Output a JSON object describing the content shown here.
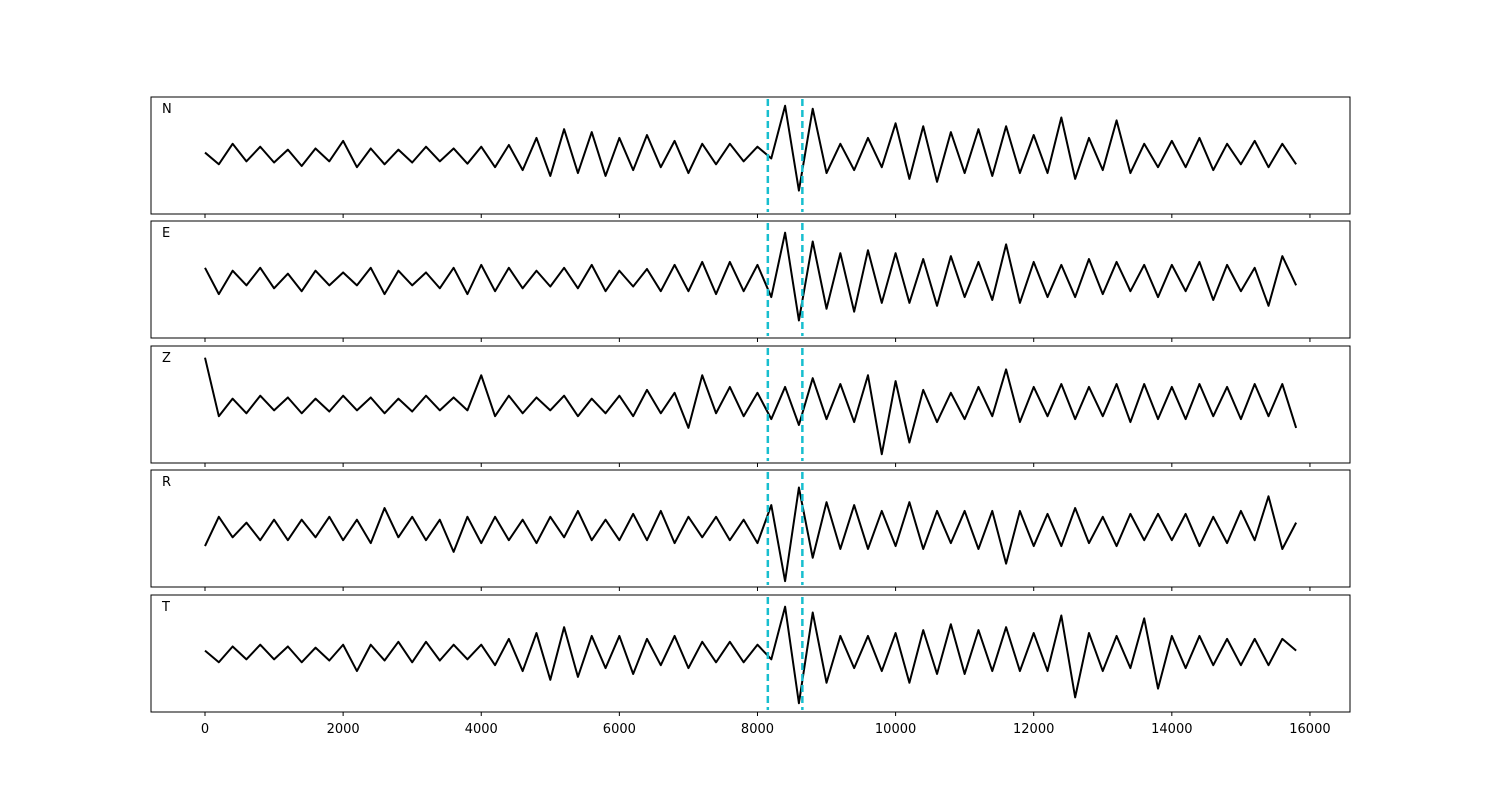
{
  "chart_data": [
    {
      "type": "line",
      "label": "N",
      "color": "#000000",
      "xlim": [
        -782,
        16580
      ],
      "ylim": [
        -1,
        1
      ],
      "vlines": [
        8150,
        8650
      ],
      "vline_color": "#17becf",
      "x": [
        0,
        200,
        400,
        600,
        800,
        1000,
        1200,
        1400,
        1600,
        1800,
        2000,
        2200,
        2400,
        2600,
        2800,
        3000,
        3200,
        3400,
        3600,
        3800,
        4000,
        4200,
        4400,
        4600,
        4800,
        5000,
        5200,
        5400,
        5600,
        5800,
        6000,
        6200,
        6400,
        6600,
        6800,
        7000,
        7200,
        7400,
        7600,
        7800,
        8000,
        8200,
        8400,
        8600,
        8800,
        9000,
        9200,
        9400,
        9600,
        9800,
        10000,
        10200,
        10400,
        10600,
        10800,
        11000,
        11200,
        11400,
        11600,
        11800,
        12000,
        12200,
        12400,
        12600,
        12800,
        13000,
        13200,
        13400,
        13600,
        13800,
        14000,
        14200,
        14400,
        14600,
        14800,
        15000,
        15200,
        15400,
        15600,
        15800
      ],
      "values": [
        0.05,
        -0.15,
        0.2,
        -0.1,
        0.15,
        -0.12,
        0.1,
        -0.18,
        0.12,
        -0.1,
        0.25,
        -0.2,
        0.12,
        -0.15,
        0.1,
        -0.12,
        0.15,
        -0.1,
        0.12,
        -0.14,
        0.15,
        -0.2,
        0.18,
        -0.25,
        0.3,
        -0.35,
        0.45,
        -0.3,
        0.4,
        -0.35,
        0.3,
        -0.25,
        0.35,
        -0.2,
        0.25,
        -0.3,
        0.2,
        -0.15,
        0.2,
        -0.1,
        0.15,
        -0.05,
        0.85,
        -0.6,
        0.8,
        -0.3,
        0.2,
        -0.25,
        0.3,
        -0.2,
        0.55,
        -0.4,
        0.5,
        -0.45,
        0.4,
        -0.3,
        0.45,
        -0.35,
        0.5,
        -0.3,
        0.35,
        -0.3,
        0.65,
        -0.4,
        0.3,
        -0.25,
        0.6,
        -0.3,
        0.2,
        -0.2,
        0.25,
        -0.2,
        0.3,
        -0.25,
        0.2,
        -0.15,
        0.25,
        -0.2,
        0.2,
        -0.15
      ]
    },
    {
      "type": "line",
      "label": "E",
      "color": "#000000",
      "xlim": [
        -782,
        16580
      ],
      "ylim": [
        -1,
        1
      ],
      "vlines": [
        8150,
        8650
      ],
      "vline_color": "#17becf",
      "x": [
        0,
        200,
        400,
        600,
        800,
        1000,
        1200,
        1400,
        1600,
        1800,
        2000,
        2200,
        2400,
        2600,
        2800,
        3000,
        3200,
        3400,
        3600,
        3800,
        4000,
        4200,
        4400,
        4600,
        4800,
        5000,
        5200,
        5400,
        5600,
        5800,
        6000,
        6200,
        6400,
        6600,
        6800,
        7000,
        7200,
        7400,
        7600,
        7800,
        8000,
        8200,
        8400,
        8600,
        8800,
        9000,
        9200,
        9400,
        9600,
        9800,
        10000,
        10200,
        10400,
        10600,
        10800,
        11000,
        11200,
        11400,
        11600,
        11800,
        12000,
        12200,
        12400,
        12600,
        12800,
        13000,
        13200,
        13400,
        13600,
        13800,
        14000,
        14200,
        14400,
        14600,
        14800,
        15000,
        15200,
        15400,
        15600,
        15800
      ],
      "values": [
        0.2,
        -0.25,
        0.15,
        -0.1,
        0.2,
        -0.15,
        0.1,
        -0.2,
        0.15,
        -0.1,
        0.12,
        -0.1,
        0.2,
        -0.25,
        0.15,
        -0.1,
        0.12,
        -0.15,
        0.2,
        -0.25,
        0.25,
        -0.2,
        0.2,
        -0.15,
        0.15,
        -0.12,
        0.2,
        -0.15,
        0.25,
        -0.2,
        0.15,
        -0.12,
        0.18,
        -0.2,
        0.25,
        -0.2,
        0.3,
        -0.25,
        0.3,
        -0.2,
        0.25,
        -0.3,
        0.8,
        -0.7,
        0.65,
        -0.5,
        0.45,
        -0.55,
        0.5,
        -0.4,
        0.45,
        -0.4,
        0.35,
        -0.45,
        0.4,
        -0.3,
        0.3,
        -0.35,
        0.6,
        -0.4,
        0.3,
        -0.3,
        0.25,
        -0.3,
        0.35,
        -0.25,
        0.3,
        -0.2,
        0.25,
        -0.3,
        0.25,
        -0.2,
        0.3,
        -0.35,
        0.25,
        -0.2,
        0.2,
        -0.45,
        0.4,
        -0.1
      ]
    },
    {
      "type": "line",
      "label": "Z",
      "color": "#000000",
      "xlim": [
        -782,
        16580
      ],
      "ylim": [
        -1,
        1
      ],
      "vlines": [
        8150,
        8650
      ],
      "vline_color": "#17becf",
      "x": [
        0,
        200,
        400,
        600,
        800,
        1000,
        1200,
        1400,
        1600,
        1800,
        2000,
        2200,
        2400,
        2600,
        2800,
        3000,
        3200,
        3400,
        3600,
        3800,
        4000,
        4200,
        4400,
        4600,
        4800,
        5000,
        5200,
        5400,
        5600,
        5800,
        6000,
        6200,
        6400,
        6600,
        6800,
        7000,
        7200,
        7400,
        7600,
        7800,
        8000,
        8200,
        8400,
        8600,
        8800,
        9000,
        9200,
        9400,
        9600,
        9800,
        10000,
        10200,
        10400,
        10600,
        10800,
        11000,
        11200,
        11400,
        11600,
        11800,
        12000,
        12200,
        12400,
        12600,
        12800,
        13000,
        13200,
        13400,
        13600,
        13800,
        14000,
        14200,
        14400,
        14600,
        14800,
        15000,
        15200,
        15400,
        15600,
        15800
      ],
      "values": [
        0.8,
        -0.2,
        0.1,
        -0.15,
        0.15,
        -0.1,
        0.12,
        -0.15,
        0.1,
        -0.12,
        0.15,
        -0.1,
        0.12,
        -0.15,
        0.1,
        -0.12,
        0.15,
        -0.1,
        0.12,
        -0.1,
        0.5,
        -0.2,
        0.15,
        -0.15,
        0.12,
        -0.1,
        0.15,
        -0.2,
        0.1,
        -0.15,
        0.15,
        -0.2,
        0.25,
        -0.15,
        0.2,
        -0.4,
        0.5,
        -0.15,
        0.3,
        -0.2,
        0.2,
        -0.25,
        0.3,
        -0.35,
        0.45,
        -0.25,
        0.35,
        -0.3,
        0.5,
        -0.85,
        0.4,
        -0.65,
        0.25,
        -0.3,
        0.2,
        -0.25,
        0.3,
        -0.2,
        0.6,
        -0.3,
        0.3,
        -0.2,
        0.35,
        -0.25,
        0.3,
        -0.2,
        0.35,
        -0.3,
        0.35,
        -0.25,
        0.3,
        -0.25,
        0.35,
        -0.2,
        0.3,
        -0.25,
        0.35,
        -0.2,
        0.35,
        -0.4
      ]
    },
    {
      "type": "line",
      "label": "R",
      "color": "#000000",
      "xlim": [
        -782,
        16580
      ],
      "ylim": [
        -1,
        1
      ],
      "vlines": [
        8150,
        8650
      ],
      "vline_color": "#17becf",
      "x": [
        0,
        200,
        400,
        600,
        800,
        1000,
        1200,
        1400,
        1600,
        1800,
        2000,
        2200,
        2400,
        2600,
        2800,
        3000,
        3200,
        3400,
        3600,
        3800,
        4000,
        4200,
        4400,
        4600,
        4800,
        5000,
        5200,
        5400,
        5600,
        5800,
        6000,
        6200,
        6400,
        6600,
        6800,
        7000,
        7200,
        7400,
        7600,
        7800,
        8000,
        8200,
        8400,
        8600,
        8800,
        9000,
        9200,
        9400,
        9600,
        9800,
        10000,
        10200,
        10400,
        10600,
        10800,
        11000,
        11200,
        11400,
        11600,
        11800,
        12000,
        12200,
        12400,
        12600,
        12800,
        13000,
        13200,
        13400,
        13600,
        13800,
        14000,
        14200,
        14400,
        14600,
        14800,
        15000,
        15200,
        15400,
        15600,
        15800
      ],
      "values": [
        -0.3,
        0.2,
        -0.15,
        0.1,
        -0.2,
        0.15,
        -0.2,
        0.15,
        -0.15,
        0.2,
        -0.2,
        0.15,
        -0.25,
        0.35,
        -0.15,
        0.2,
        -0.2,
        0.15,
        -0.4,
        0.2,
        -0.25,
        0.2,
        -0.2,
        0.15,
        -0.25,
        0.2,
        -0.15,
        0.3,
        -0.2,
        0.15,
        -0.2,
        0.25,
        -0.2,
        0.3,
        -0.25,
        0.2,
        -0.15,
        0.2,
        -0.2,
        0.15,
        -0.25,
        0.4,
        -0.9,
        0.7,
        -0.5,
        0.45,
        -0.35,
        0.4,
        -0.35,
        0.3,
        -0.3,
        0.45,
        -0.35,
        0.3,
        -0.25,
        0.3,
        -0.35,
        0.3,
        -0.6,
        0.3,
        -0.3,
        0.25,
        -0.3,
        0.35,
        -0.25,
        0.2,
        -0.3,
        0.25,
        -0.2,
        0.25,
        -0.2,
        0.25,
        -0.3,
        0.2,
        -0.25,
        0.3,
        -0.2,
        0.55,
        -0.35,
        0.1
      ]
    },
    {
      "type": "line",
      "label": "T",
      "color": "#000000",
      "xlim": [
        -782,
        16580
      ],
      "ylim": [
        -1,
        1
      ],
      "vlines": [
        8150,
        8650
      ],
      "vline_color": "#17becf",
      "xticks": [
        0,
        2000,
        4000,
        6000,
        8000,
        10000,
        12000,
        14000,
        16000
      ],
      "x": [
        0,
        200,
        400,
        600,
        800,
        1000,
        1200,
        1400,
        1600,
        1800,
        2000,
        2200,
        2400,
        2600,
        2800,
        3000,
        3200,
        3400,
        3600,
        3800,
        4000,
        4200,
        4400,
        4600,
        4800,
        5000,
        5200,
        5400,
        5600,
        5800,
        6000,
        6200,
        6400,
        6600,
        6800,
        7000,
        7200,
        7400,
        7600,
        7800,
        8000,
        8200,
        8400,
        8600,
        8800,
        9000,
        9200,
        9400,
        9600,
        9800,
        10000,
        10200,
        10400,
        10600,
        10800,
        11000,
        11200,
        11400,
        11600,
        11800,
        12000,
        12200,
        12400,
        12600,
        12800,
        13000,
        13200,
        13400,
        13600,
        13800,
        14000,
        14200,
        14400,
        14600,
        14800,
        15000,
        15200,
        15400,
        15600,
        15800
      ],
      "values": [
        0.05,
        -0.15,
        0.12,
        -0.1,
        0.15,
        -0.1,
        0.12,
        -0.15,
        0.1,
        -0.12,
        0.15,
        -0.3,
        0.15,
        -0.12,
        0.2,
        -0.15,
        0.2,
        -0.12,
        0.15,
        -0.1,
        0.15,
        -0.2,
        0.25,
        -0.3,
        0.35,
        -0.45,
        0.45,
        -0.4,
        0.3,
        -0.25,
        0.3,
        -0.35,
        0.25,
        -0.2,
        0.3,
        -0.25,
        0.2,
        -0.15,
        0.2,
        -0.15,
        0.15,
        -0.1,
        0.8,
        -0.85,
        0.7,
        -0.5,
        0.3,
        -0.25,
        0.3,
        -0.3,
        0.35,
        -0.5,
        0.4,
        -0.35,
        0.5,
        -0.35,
        0.4,
        -0.3,
        0.45,
        -0.3,
        0.35,
        -0.3,
        0.65,
        -0.75,
        0.35,
        -0.3,
        0.3,
        -0.25,
        0.6,
        -0.6,
        0.3,
        -0.25,
        0.3,
        -0.2,
        0.25,
        -0.2,
        0.25,
        -0.2,
        0.25,
        0.05
      ]
    }
  ]
}
